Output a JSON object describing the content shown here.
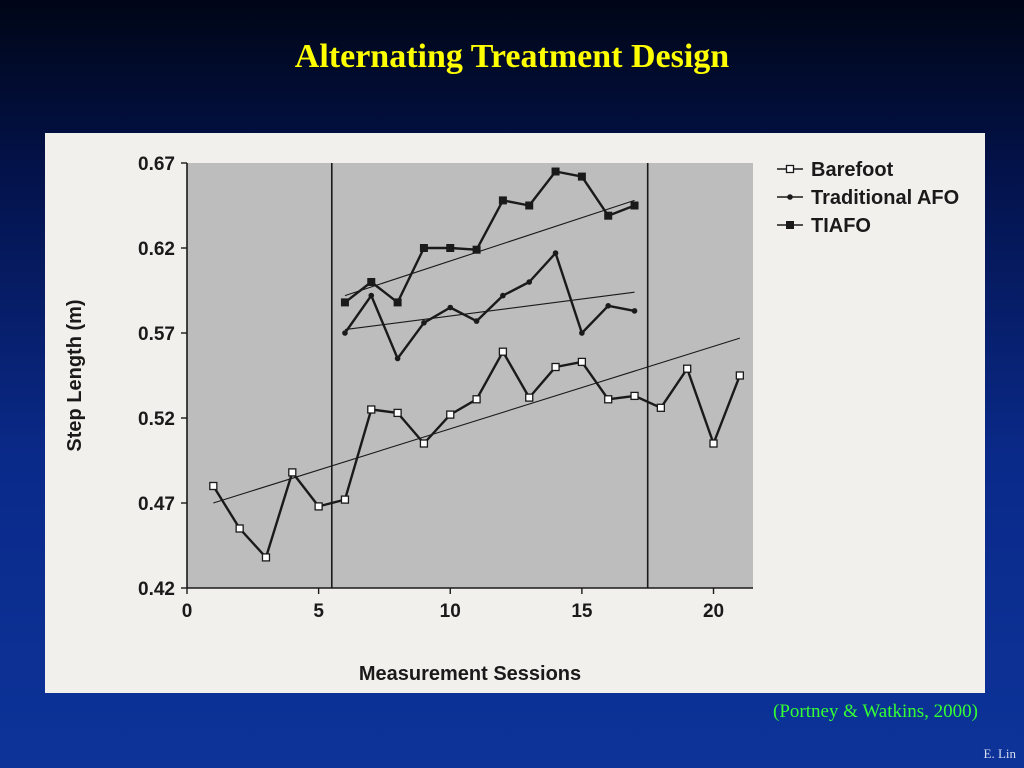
{
  "slide": {
    "title": "Alternating Treatment Design",
    "citation": "(Portney & Watkins, 2000)",
    "author": "E. Lin"
  },
  "colors": {
    "title": "#ffff00",
    "citation": "#33ff33",
    "plot_shade": "#bdbdbd",
    "ink": "#1a1a1a"
  },
  "chart_data": {
    "type": "line",
    "title": "",
    "xlabel": "Measurement Sessions",
    "ylabel": "Step Length (m)",
    "xlim": [
      0,
      21.5
    ],
    "ylim": [
      0.42,
      0.67
    ],
    "xticks": [
      0,
      5,
      10,
      15,
      20
    ],
    "yticks": [
      0.42,
      0.47,
      0.52,
      0.57,
      0.62,
      0.67
    ],
    "ytick_labels": [
      "0.42",
      "0.47",
      "0.52",
      "0.57",
      "0.62",
      "0.67"
    ],
    "phase_lines": [
      5.5,
      17.5
    ],
    "legend_position": "top-right",
    "series": [
      {
        "name": "Barefoot",
        "marker": "open-square",
        "x": [
          1,
          2,
          3,
          4,
          5,
          6,
          7,
          8,
          9,
          10,
          11,
          12,
          13,
          14,
          15,
          16,
          17,
          18,
          19,
          20,
          21
        ],
        "values": [
          0.48,
          0.455,
          0.438,
          0.488,
          0.468,
          0.472,
          0.525,
          0.523,
          0.505,
          0.522,
          0.531,
          0.559,
          0.532,
          0.55,
          0.553,
          0.531,
          0.533,
          0.526,
          0.549,
          0.505,
          0.545
        ]
      },
      {
        "name": "Traditional AFO",
        "marker": "dot",
        "x": [
          6,
          7,
          8,
          9,
          10,
          11,
          12,
          13,
          14,
          15,
          16,
          17
        ],
        "values": [
          0.57,
          0.592,
          0.555,
          0.576,
          0.585,
          0.577,
          0.592,
          0.6,
          0.617,
          0.57,
          0.586,
          0.583
        ]
      },
      {
        "name": "TIAFO",
        "marker": "filled-square",
        "x": [
          6,
          7,
          8,
          9,
          10,
          11,
          12,
          13,
          14,
          15,
          16,
          17
        ],
        "values": [
          0.588,
          0.6,
          0.588,
          0.62,
          0.62,
          0.619,
          0.648,
          0.645,
          0.665,
          0.662,
          0.639,
          0.645
        ]
      }
    ],
    "trend_lines": [
      {
        "series": "Barefoot",
        "x": [
          1,
          21
        ],
        "values": [
          0.47,
          0.567
        ]
      },
      {
        "series": "Traditional AFO",
        "x": [
          6,
          17
        ],
        "values": [
          0.572,
          0.594
        ]
      },
      {
        "series": "TIAFO",
        "x": [
          6,
          17
        ],
        "values": [
          0.592,
          0.648
        ]
      }
    ]
  }
}
